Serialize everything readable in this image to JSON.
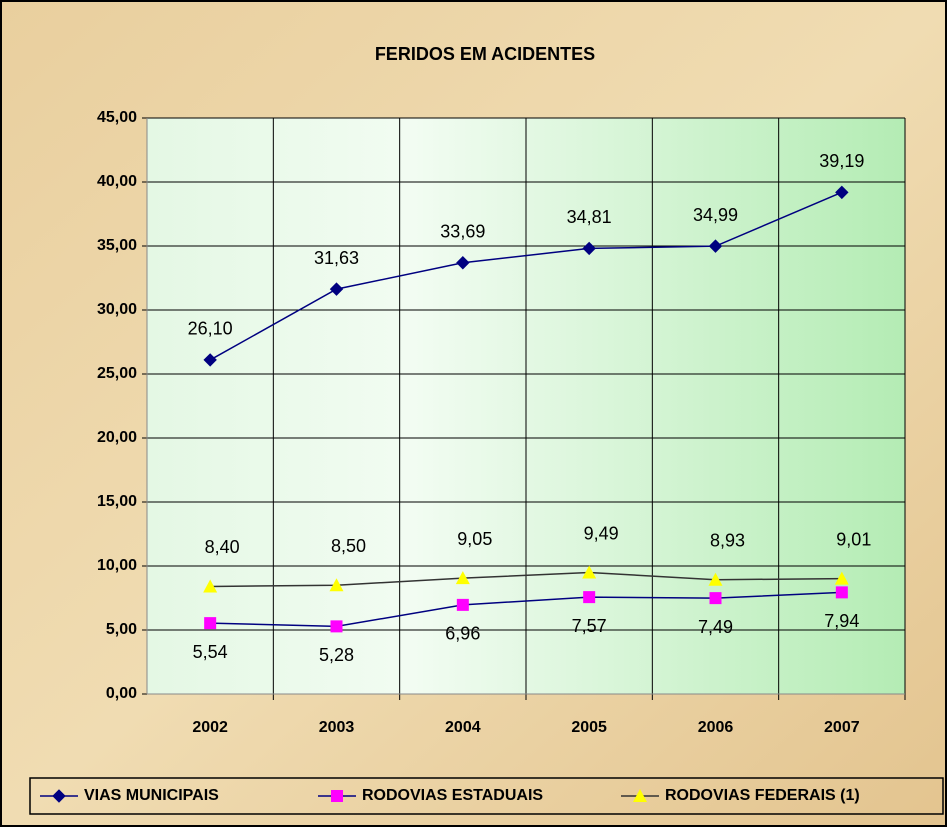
{
  "chart_data": {
    "type": "line",
    "title": "FERIDOS EM ACIDENTES",
    "categories": [
      "2002",
      "2003",
      "2004",
      "2005",
      "2006",
      "2007"
    ],
    "series": [
      {
        "name": "VIAS MUNICIPAIS",
        "color": "#000080",
        "marker": "diamond",
        "values": [
          26.1,
          31.63,
          33.69,
          34.81,
          34.99,
          39.19
        ],
        "value_labels": [
          "26,10",
          "31,63",
          "33,69",
          "34,81",
          "34,99",
          "39,19"
        ]
      },
      {
        "name": "RODOVIAS ESTADUAIS",
        "color": "#ff00ff",
        "line_color": "#000080",
        "marker": "square",
        "values": [
          5.54,
          5.28,
          6.96,
          7.57,
          7.49,
          7.94
        ],
        "value_labels": [
          "5,54",
          "5,28",
          "6,96",
          "7,57",
          "7,49",
          "7,94"
        ]
      },
      {
        "name": "RODOVIAS FEDERAIS (1)",
        "color": "#ffff00",
        "line_color": "#333333",
        "marker": "triangle",
        "values": [
          8.4,
          8.5,
          9.05,
          9.49,
          8.93,
          9.01
        ],
        "value_labels": [
          "8,40",
          "8,50",
          "9,05",
          "9,49",
          "8,93",
          "9,01"
        ]
      }
    ],
    "ylim": [
      0,
      45
    ],
    "yticks": [
      {
        "value": 0,
        "label": "0,00"
      },
      {
        "value": 5,
        "label": "5,00"
      },
      {
        "value": 10,
        "label": "10,00"
      },
      {
        "value": 15,
        "label": "15,00"
      },
      {
        "value": 20,
        "label": "20,00"
      },
      {
        "value": 25,
        "label": "25,00"
      },
      {
        "value": 30,
        "label": "30,00"
      },
      {
        "value": 35,
        "label": "35,00"
      },
      {
        "value": 40,
        "label": "40,00"
      },
      {
        "value": 45,
        "label": "45,00"
      }
    ],
    "grid": true,
    "legend": "bottom"
  }
}
